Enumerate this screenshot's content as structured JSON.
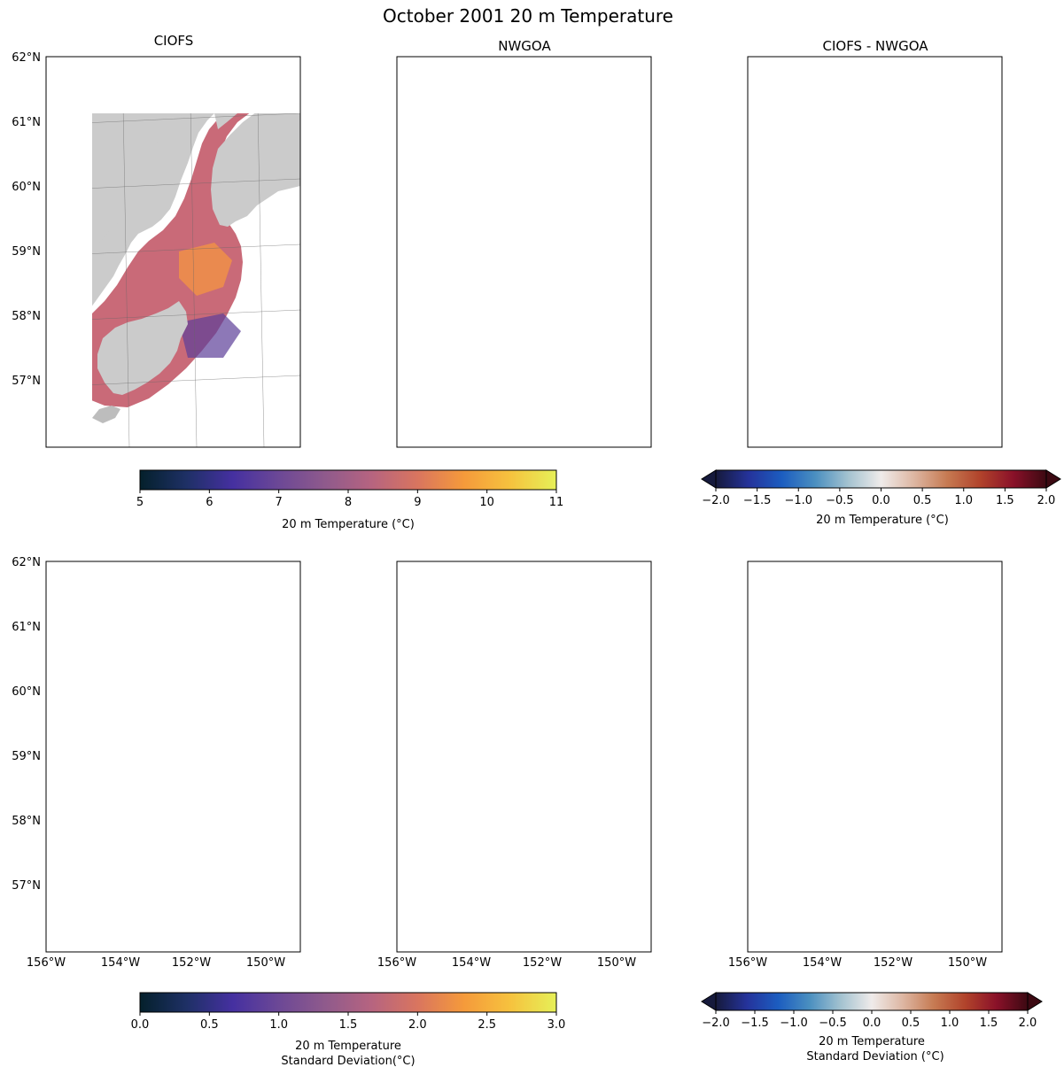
{
  "figure": {
    "title": "October 2001 20 m Temperature"
  },
  "chart_data": [
    {
      "type": "heatmap",
      "title": "CIOFS",
      "quantity": "20 m Temperature (°C)",
      "lat_ticks": [
        "62°N",
        "61°N",
        "60°N",
        "59°N",
        "58°N",
        "57°N"
      ],
      "lon_ticks": [],
      "colormap": "thermal",
      "clim": [
        5,
        11
      ],
      "grid": true
    },
    {
      "type": "heatmap",
      "title": "NWGOA",
      "quantity": "20 m Temperature (°C)",
      "lat_ticks": [],
      "lon_ticks": [],
      "colormap": "thermal",
      "clim": [
        5,
        11
      ],
      "grid": true
    },
    {
      "type": "heatmap",
      "title": "CIOFS - NWGOA",
      "quantity": "20 m Temperature (°C)",
      "lat_ticks": [],
      "lon_ticks": [],
      "colormap": "balance",
      "clim": [
        -2,
        2
      ],
      "grid": true
    },
    {
      "type": "heatmap",
      "title": "",
      "quantity": "20 m Temperature Standard Deviation (°C)",
      "lat_ticks": [
        "62°N",
        "61°N",
        "60°N",
        "59°N",
        "58°N",
        "57°N"
      ],
      "lon_ticks": [
        "156°W",
        "154°W",
        "152°W",
        "150°W"
      ],
      "colormap": "thermal",
      "clim": [
        0,
        3
      ],
      "grid": true
    },
    {
      "type": "heatmap",
      "title": "",
      "quantity": "20 m Temperature Standard Deviation (°C)",
      "lat_ticks": [],
      "lon_ticks": [
        "156°W",
        "154°W",
        "152°W",
        "150°W"
      ],
      "colormap": "thermal",
      "clim": [
        0,
        3
      ],
      "grid": true
    },
    {
      "type": "heatmap",
      "title": "",
      "quantity": "20 m Temperature Standard Deviation (°C)",
      "lat_ticks": [],
      "lon_ticks": [
        "156°W",
        "154°W",
        "152°W",
        "150°W"
      ],
      "colormap": "balance",
      "clim": [
        -2,
        2
      ],
      "grid": true
    }
  ],
  "colorbars": [
    {
      "label_lines": [
        "20 m Temperature (°C)"
      ],
      "ticks": [
        "5",
        "6",
        "7",
        "8",
        "9",
        "10",
        "11"
      ],
      "extend": false,
      "colors": [
        "#04202b",
        "#1e3065",
        "#4530a0",
        "#6c4896",
        "#8f5a8c",
        "#b66480",
        "#d9755f",
        "#f59a3b",
        "#f6c23e",
        "#e6f058"
      ]
    },
    {
      "label_lines": [
        "20 m Temperature (°C)"
      ],
      "ticks": [
        "−2.0",
        "−1.5",
        "−1.0",
        "−0.5",
        "0.0",
        "0.5",
        "1.0",
        "1.5",
        "2.0"
      ],
      "extend": true,
      "colors": [
        "#161a3c",
        "#25339b",
        "#1c5dc0",
        "#4a8fc0",
        "#a3c2d0",
        "#efebea",
        "#ddb6a2",
        "#c67a52",
        "#b1432b",
        "#8a1129",
        "#3c0912"
      ]
    },
    {
      "label_lines": [
        "20 m Temperature",
        "Standard Deviation(°C)"
      ],
      "ticks": [
        "0.0",
        "0.5",
        "1.0",
        "1.5",
        "2.0",
        "2.5",
        "3.0"
      ],
      "extend": false,
      "colors": [
        "#04202b",
        "#1e3065",
        "#4530a0",
        "#6c4896",
        "#8f5a8c",
        "#b66480",
        "#d9755f",
        "#f59a3b",
        "#f6c23e",
        "#e6f058"
      ]
    },
    {
      "label_lines": [
        "20 m Temperature",
        "Standard Deviation (°C)"
      ],
      "ticks": [
        "−2.0",
        "−1.5",
        "−1.0",
        "−0.5",
        "0.0",
        "0.5",
        "1.0",
        "1.5",
        "2.0"
      ],
      "extend": true,
      "colors": [
        "#161a3c",
        "#25339b",
        "#1c5dc0",
        "#4a8fc0",
        "#a3c2d0",
        "#efebea",
        "#ddb6a2",
        "#c67a52",
        "#b1432b",
        "#8a1129",
        "#3c0912"
      ]
    }
  ],
  "map_colors": {
    "land": "#cbcbcb",
    "ciofs_mean": "#c96a78",
    "nwgoa_mean": "#e07a5e",
    "diff_mean": "#3f7fc4",
    "ciofs_std": "#4c3b94",
    "nwgoa_std": "#5a3ea0",
    "diff_std": "#8fb3d6"
  }
}
